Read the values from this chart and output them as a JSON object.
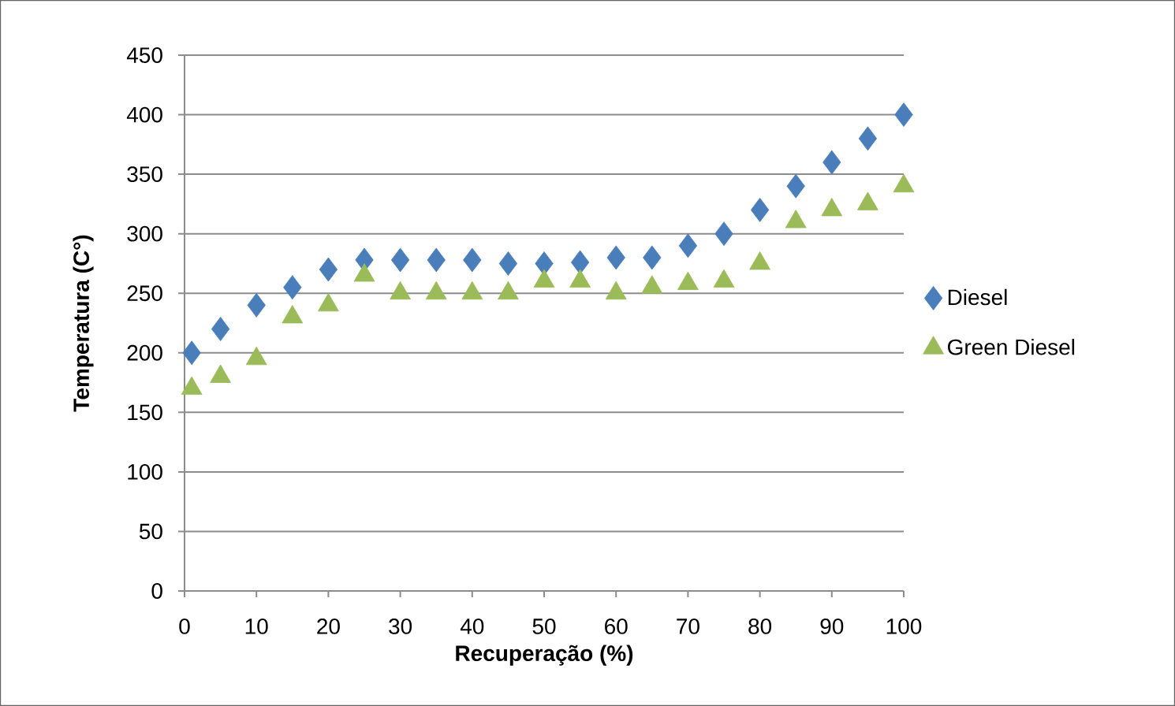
{
  "chart_data": {
    "type": "scatter",
    "xlabel": "Recuperação (%)",
    "ylabel": "Temperatura (C°)",
    "xlim": [
      0,
      100
    ],
    "xticks": [
      0,
      10,
      20,
      30,
      40,
      50,
      60,
      70,
      80,
      90,
      100
    ],
    "ylim": [
      0,
      450
    ],
    "yticks": [
      0,
      50,
      100,
      150,
      200,
      250,
      300,
      350,
      400,
      450
    ],
    "grid": "y",
    "legend": "right",
    "series": [
      {
        "name": "Diesel",
        "color": "#4a7ebb",
        "marker": "diamond",
        "x": [
          1,
          5,
          10,
          15,
          20,
          25,
          30,
          35,
          40,
          45,
          50,
          55,
          60,
          65,
          70,
          75,
          80,
          85,
          90,
          95,
          100
        ],
        "values": [
          200,
          220,
          240,
          255,
          270,
          278,
          278,
          278,
          278,
          275,
          275,
          276,
          280,
          280,
          290,
          300,
          320,
          340,
          360,
          380,
          400
        ]
      },
      {
        "name": "Green Diesel",
        "color": "#9bbb59",
        "marker": "triangle",
        "x": [
          1,
          5,
          10,
          15,
          20,
          25,
          30,
          35,
          40,
          45,
          50,
          55,
          60,
          65,
          70,
          75,
          80,
          85,
          90,
          95,
          100
        ],
        "values": [
          170,
          180,
          195,
          230,
          240,
          265,
          250,
          250,
          250,
          250,
          260,
          260,
          250,
          255,
          258,
          260,
          275,
          310,
          320,
          325,
          340
        ]
      }
    ]
  }
}
